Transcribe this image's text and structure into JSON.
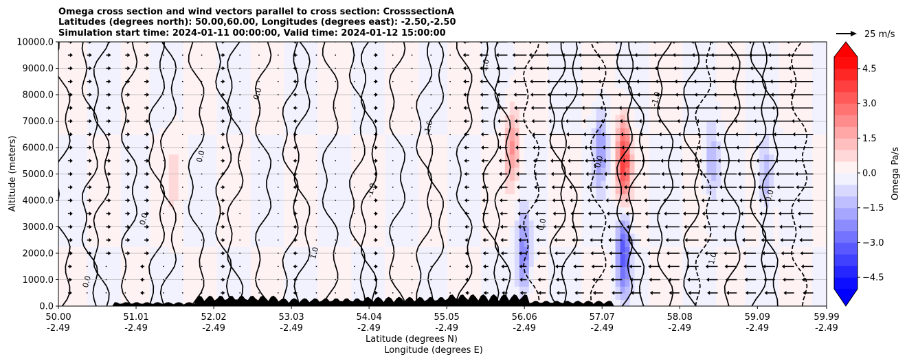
{
  "chart_data": {
    "type": "heatmap",
    "title": [
      "Omega cross section and wind vectors parallel to cross section: CrosssectionA",
      "Latitudes (degrees north): 50.00,60.00, Longitudes (degrees east): -2.50,-2.50",
      "Simulation start time: 2024-01-11 00:00:00, Valid time: 2024-01-12 15:00:00"
    ],
    "ylabel": "Altitude (meters)",
    "xlabel_lines": [
      "Latitude (degrees N)",
      "Longitude (degrees E)"
    ],
    "ylim": [
      0,
      10000
    ],
    "y_ticks": [
      "0.0",
      "1000.0",
      "2000.0",
      "3000.0",
      "4000.0",
      "5000.0",
      "6000.0",
      "7000.0",
      "8000.0",
      "9000.0",
      "10000.0"
    ],
    "x_ticks": [
      {
        "lat": "50.00",
        "lon": "-2.49"
      },
      {
        "lat": "51.01",
        "lon": "-2.49"
      },
      {
        "lat": "52.02",
        "lon": "-2.49"
      },
      {
        "lat": "53.03",
        "lon": "-2.49"
      },
      {
        "lat": "54.04",
        "lon": "-2.49"
      },
      {
        "lat": "55.05",
        "lon": "-2.49"
      },
      {
        "lat": "56.06",
        "lon": "-2.49"
      },
      {
        "lat": "57.07",
        "lon": "-2.49"
      },
      {
        "lat": "58.08",
        "lon": "-2.49"
      },
      {
        "lat": "59.09",
        "lon": "-2.49"
      },
      {
        "lat": "59.99",
        "lon": "-2.49"
      }
    ],
    "colorbar": {
      "label": "Omega Pa/s",
      "range": [
        -5.0,
        5.0
      ],
      "levels": [
        -5.0,
        -4.5,
        -4.0,
        -3.5,
        -3.0,
        -2.5,
        -2.0,
        -1.5,
        -1.0,
        -0.5,
        0.0,
        0.5,
        1.0,
        1.5,
        2.0,
        2.5,
        3.0,
        3.5,
        4.0,
        4.5,
        5.0
      ],
      "tick_labels": [
        "−4.5",
        "−3.0",
        "−1.5",
        "0.0",
        "1.5",
        "3.0",
        "4.5"
      ],
      "tick_values": [
        -4.5,
        -3.0,
        -1.5,
        0.0,
        1.5,
        3.0,
        4.5
      ],
      "extend": "both",
      "colormap": "bwr"
    },
    "wind_key": {
      "label": "25 m/s",
      "speed": 25
    },
    "contour_levels": [
      -1.0,
      0.0,
      1.0
    ],
    "contour_label_samples": [
      "0.0",
      "0.0",
      "0.0",
      "0.0",
      "1.0",
      "-1.0",
      "-1.0",
      "1.0",
      "0.0",
      "0.0",
      "-1.0",
      "1.0",
      "0.0"
    ],
    "features": [
      {
        "lat": 55.9,
        "alt_m": 6000,
        "omega": 2.0
      },
      {
        "lat": 56.05,
        "alt_m": 2000,
        "omega": -2.5
      },
      {
        "lat": 57.35,
        "alt_m": 5500,
        "omega": 4.0
      },
      {
        "lat": 57.35,
        "alt_m": 2000,
        "omega": -3.5
      },
      {
        "lat": 57.05,
        "alt_m": 6000,
        "omega": -2.0
      },
      {
        "lat": 58.5,
        "alt_m": 5500,
        "omega": -1.5
      },
      {
        "lat": 59.2,
        "alt_m": 5000,
        "omega": -1.5
      },
      {
        "lat": 51.5,
        "alt_m": 5000,
        "omega": 0.6
      }
    ],
    "wind_columns": {
      "lat_from": 50.0,
      "lat_to": 59.99,
      "dominant_direction": "east of 55.0 flows toward lower latitude (leftward), weak elsewhere",
      "max_speed_ms": 30
    },
    "terrain_peaks_m": [
      150,
      400,
      300,
      350,
      450,
      200
    ]
  }
}
